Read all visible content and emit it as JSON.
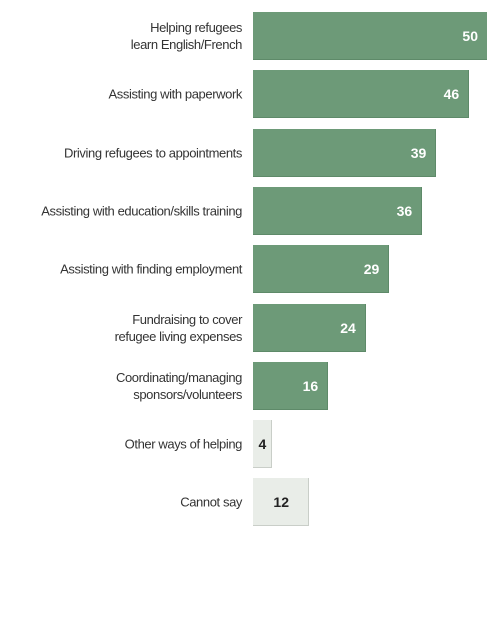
{
  "chart_data": {
    "type": "bar",
    "orientation": "horizontal",
    "title": "",
    "xlabel": "",
    "ylabel": "",
    "xlim": [
      0,
      50
    ],
    "grid": false,
    "legend": "none",
    "categories": [
      "Helping refugees\nlearn English/French",
      "Assisting with paperwork",
      "Driving refugees to appointments",
      "Assisting with education/skills training",
      "Assisting with finding employment",
      "Fundraising to cover\nrefugee living expenses",
      "Coordinating/managing\nsponsors/volunteers",
      "Other ways of helping",
      "Cannot say"
    ],
    "values": [
      50,
      46,
      39,
      36,
      29,
      24,
      16,
      4,
      12
    ],
    "bar_styles": [
      "main",
      "main",
      "main",
      "main",
      "main",
      "main",
      "main",
      "other",
      "other"
    ],
    "colors": {
      "main": "#6d9a78",
      "other": "#e9ede8",
      "main_label": "#ffffff",
      "other_label": "#222222"
    }
  }
}
